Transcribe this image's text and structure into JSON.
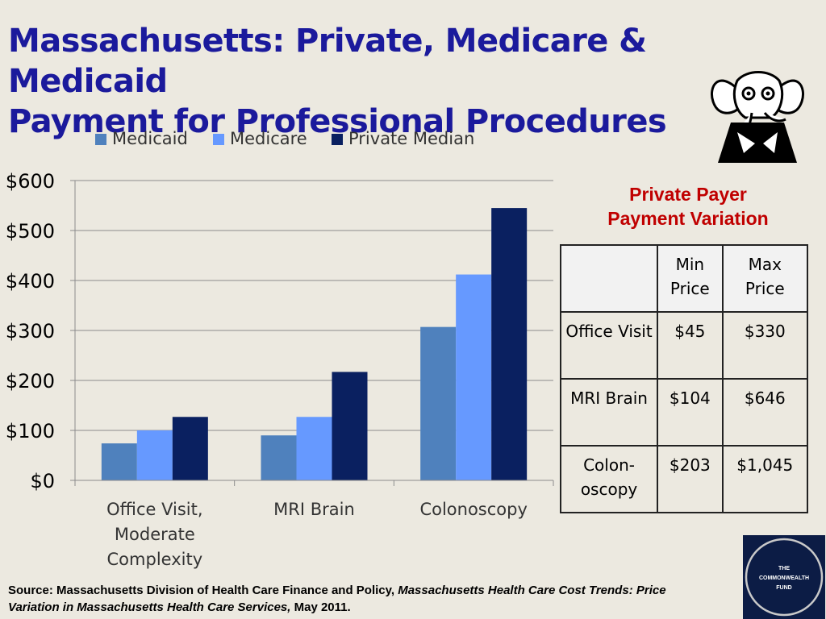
{
  "title": {
    "line1": "Massachusetts: Private, Medicare & Medicaid",
    "line2": "Payment for Professional Procedures"
  },
  "colors": {
    "title": "#1b1a9c",
    "medicaid": "#4f81bd",
    "medicare": "#6699ff",
    "private_median": "#0a2060",
    "variation_title": "#c00000",
    "logo_bg": "#0c1c45"
  },
  "chart_data": {
    "type": "bar",
    "categories": [
      [
        "Office Visit,",
        "Moderate",
        "Complexity"
      ],
      [
        "MRI Brain"
      ],
      [
        "Colonoscopy"
      ]
    ],
    "series": [
      {
        "name": "Medicaid",
        "values": [
          74,
          90,
          307
        ]
      },
      {
        "name": "Medicare",
        "values": [
          100,
          127,
          412
        ]
      },
      {
        "name": "Private Median",
        "values": [
          127,
          217,
          545
        ]
      }
    ],
    "yticks": [
      "$0",
      "$100",
      "$200",
      "$300",
      "$400",
      "$500",
      "$600"
    ],
    "ylim": [
      0,
      600
    ],
    "grid": true,
    "legend_position": "top"
  },
  "variation": {
    "title_line1": "Private Payer",
    "title_line2": "Payment Variation",
    "headers": [
      "",
      "Min Price",
      "Max Price"
    ],
    "rows": [
      {
        "label": "Office Visit",
        "min": "$45",
        "max": "$330"
      },
      {
        "label": "MRI Brain",
        "min": "$104",
        "max": "$646"
      },
      {
        "label": "Colon-oscopy",
        "min": "$203",
        "max": "$1,045"
      }
    ]
  },
  "source": {
    "prefix": "Source: Massachusetts Division of Health Care Finance and Policy, ",
    "publication": "Massachusetts Health Care Cost Trends: Price Variation in Massachusetts Health Care Services,",
    "suffix": " May 2011."
  },
  "logo": {
    "line1": "THE",
    "line2": "COMMONWEALTH",
    "line3": "FUND"
  },
  "icons": {
    "elephant": "elephant-cartoon-icon",
    "logo": "commonwealth-fund-logo"
  }
}
